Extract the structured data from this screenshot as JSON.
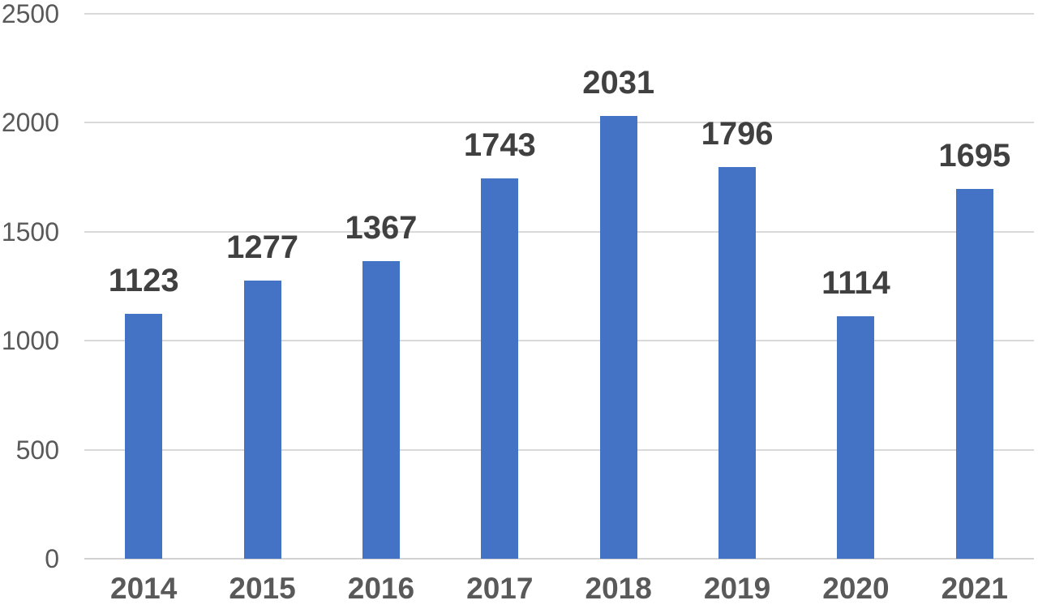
{
  "chart_data": {
    "type": "bar",
    "title": "",
    "xlabel": "",
    "ylabel": "",
    "categories": [
      "2014",
      "2015",
      "2016",
      "2017",
      "2018",
      "2019",
      "2020",
      "2021"
    ],
    "values": [
      1123,
      1277,
      1367,
      1743,
      2031,
      1796,
      1114,
      1695
    ],
    "data_labels": [
      "1123",
      "1277",
      "1367",
      "1743",
      "2031",
      "1796",
      "1114",
      "1695"
    ],
    "ylim": [
      0,
      2500
    ],
    "y_ticks": [
      0,
      500,
      1000,
      1500,
      2000,
      2500
    ],
    "y_tick_labels": [
      "0",
      "500",
      "1000",
      "1500",
      "2000",
      "2500"
    ],
    "grid": true,
    "legend": "none",
    "colors": {
      "bar": "#4472c4",
      "data_label": "#404040",
      "axis_label": "#595959",
      "gridline": "#d9d9d9",
      "background": "#ffffff"
    }
  }
}
